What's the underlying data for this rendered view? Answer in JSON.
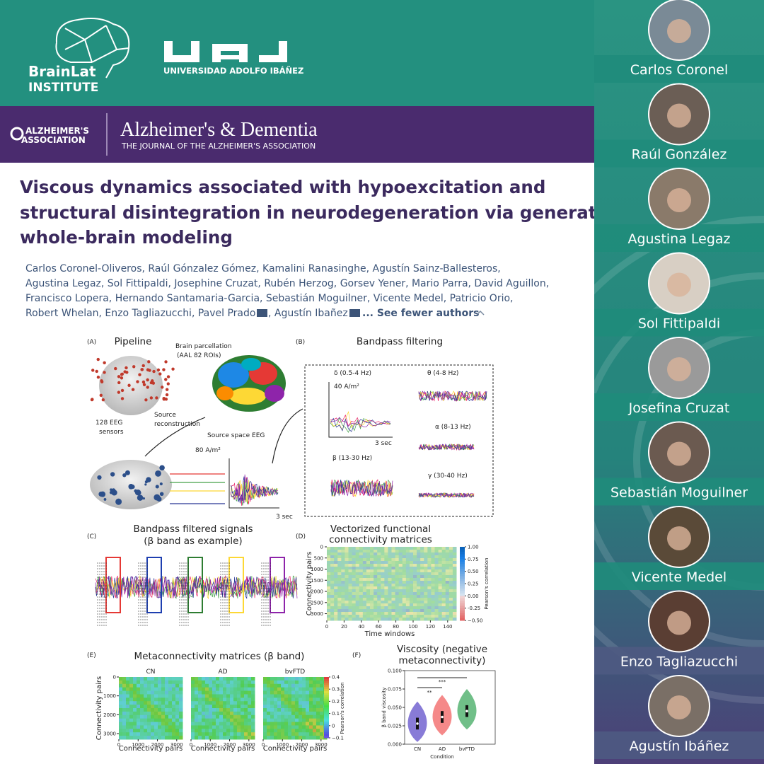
{
  "header": {
    "institute": [
      "BrainLat",
      "INSTITUTE"
    ],
    "university": "UNIVERSIDAD ADOLFO IBÁÑEZ"
  },
  "journal": {
    "association": [
      "ALZHEIMER'S",
      "ASSOCIATION"
    ],
    "name": "Alzheimer's & Dementia",
    "subtitle": "THE JOURNAL OF THE ALZHEIMER'S ASSOCIATION"
  },
  "article": {
    "title_lines": [
      "Viscous dynamics associated with hypoexcitation and",
      "structural disintegration in neurodegeneration via generative",
      "whole-brain modeling"
    ],
    "author_lines": [
      "Carlos Coronel-Oliveros, Raúl Gónzalez Gómez, Kamalini Ranasinghe, Agustín Sainz-Ballesteros,",
      "Agustina Legaz, Sol Fittipaldi, Josephine Cruzat, Rubén Herzog, Gorsev Yener, Mario Parra, David Aguillon,",
      "Francisco Lopera, Hernando Santamaria-Garcia, Sebastián Moguilner, Vicente Medel, Patricio Orio,"
    ],
    "last_line": [
      "Robert Whelan, Enzo Tagliazucchi, Pavel Prado",
      ", Agustín Ibañez",
      "... See fewer authors"
    ]
  },
  "figure": {
    "a": {
      "label": "(A)",
      "title": "Pipeline",
      "parcellation": [
        "Brain parcellation",
        "(AAL 82 ROIs)"
      ],
      "sensors": [
        "128 EEG",
        "sensors"
      ],
      "source": [
        "Source",
        "reconstruction"
      ],
      "source_space": "Source space EEG",
      "scale": "80 A/m²",
      "time": "3 sec"
    },
    "b": {
      "label": "(B)",
      "title": "Bandpass filtering",
      "bands": [
        "δ (0.5-4 Hz)",
        "θ (4-8 Hz)",
        "α (8-13 Hz)",
        "β (13-30 Hz)",
        "γ (30-40 Hz)"
      ],
      "scale": "40 A/m²",
      "time": "3 sec"
    },
    "c": {
      "label": "(C)",
      "title": [
        "Bandpass filtered signals",
        "(β band as example)"
      ]
    },
    "d": {
      "label": "(D)",
      "title": [
        "Vectorized functional",
        "connectivity matrices"
      ],
      "ylabel": "Connectivity pairs",
      "xlabel": "Time windows",
      "ylim": [
        0,
        3300
      ],
      "yticks": [
        0,
        500,
        1000,
        1500,
        2000,
        2500,
        3000
      ],
      "xlim": [
        0,
        150
      ],
      "xticks": [
        0,
        20,
        40,
        60,
        80,
        100,
        120,
        140
      ],
      "clim": [
        -0.5,
        1.0
      ],
      "cticks": [
        {
          "value": 1.0,
          "label": "1.00"
        },
        0.75,
        {
          "value": 0.5,
          "label": "0.50"
        },
        0.25,
        {
          "value": 0,
          "label": "0.00"
        },
        -0.25,
        {
          "value": -0.5,
          "label": "−0.50"
        }
      ],
      "clabel": "Pearson's correlation"
    },
    "e": {
      "label": "(E)",
      "title": "Metaconnectivity matrices (β band)",
      "groups": [
        "CN",
        "AD",
        "bvFTD"
      ],
      "ylabel": "Connectivity pairs",
      "xlabel": "Connectivity pairs",
      "lim": [
        0,
        3300
      ],
      "ticks": [
        0,
        1000,
        2000,
        3000
      ],
      "clim": [
        -0.1,
        0.4
      ],
      "cticks": [
        0.4,
        0.3,
        0.2,
        0.1,
        0.0,
        {
          "value": -0.1,
          "label": "−0.1"
        }
      ],
      "clabel": "Pearson's correlation"
    },
    "f": {
      "label": "(F)",
      "title": [
        "Viscosity (negative",
        "metaconnectivity)"
      ],
      "ylabel": "β band viscosity",
      "xlabel": "Condition",
      "groups": [
        "CN",
        "AD",
        "bvFTD"
      ],
      "ylim": [
        0,
        0.1
      ],
      "yticks": [
        {
          "value": 0,
          "label": "0.000"
        },
        {
          "value": 0.025,
          "label": "0.025"
        },
        {
          "value": 0.05,
          "label": "0.050"
        },
        {
          "value": 0.075,
          "label": "0.075"
        },
        {
          "value": 0.1,
          "label": "0.100"
        }
      ],
      "sig": [
        "**",
        "***"
      ]
    }
  },
  "people": [
    "Carlos Coronel",
    "Raúl González",
    "Agustina Legaz",
    "Sol Fittipaldi",
    "Josefina Cruzat",
    "Sebastián Moguilner",
    "Vicente Medel",
    "Enzo Tagliazucchi",
    "Agustín Ibáñez"
  ]
}
